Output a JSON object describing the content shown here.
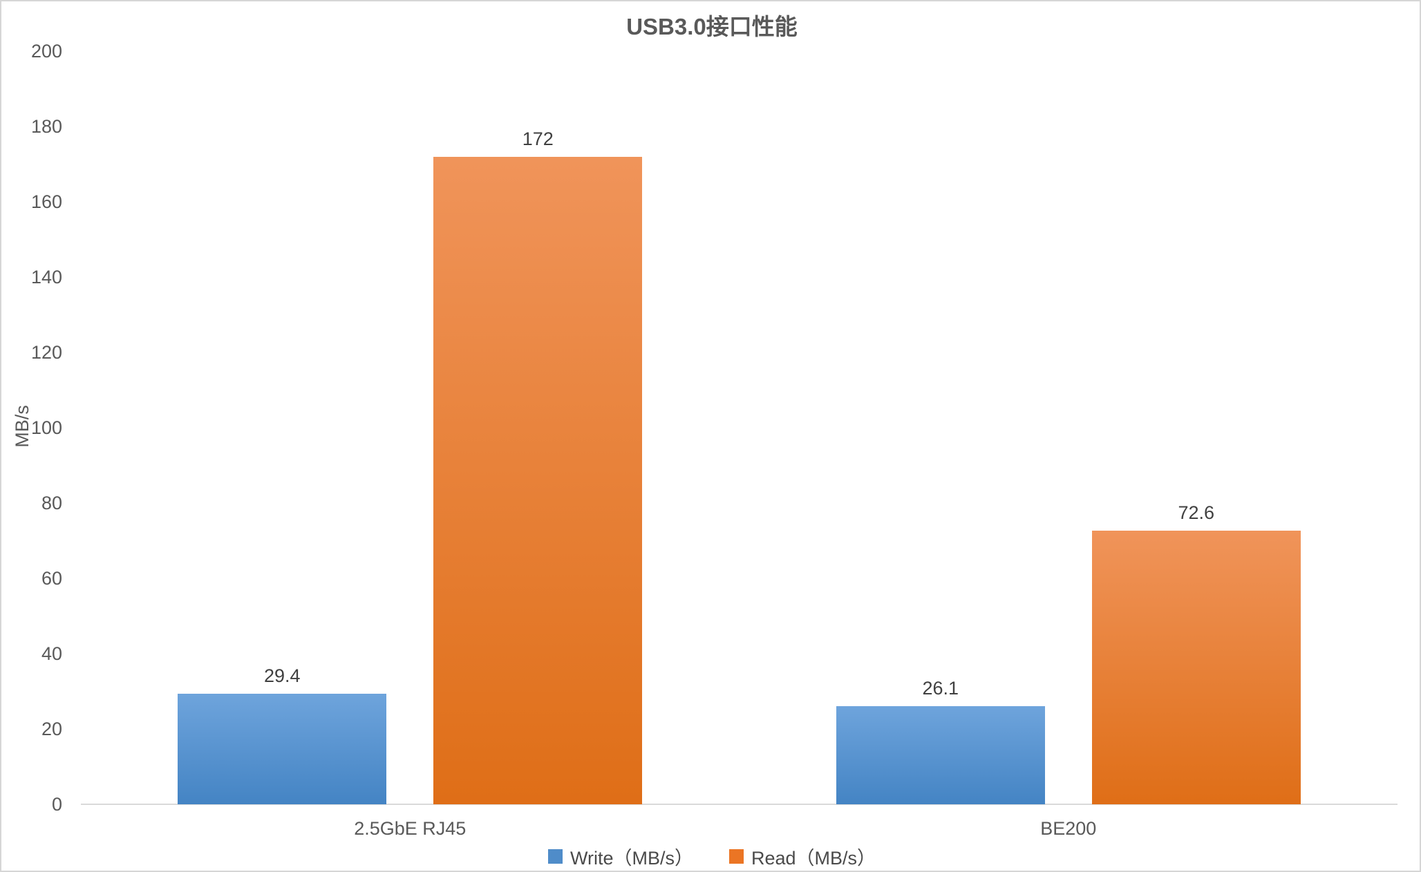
{
  "chart_data": {
    "type": "bar",
    "title": "USB3.0接口性能",
    "xlabel": "",
    "ylabel": "MB/s",
    "categories": [
      "2.5GbE RJ45",
      "BE200"
    ],
    "series": [
      {
        "name": "Write（MB/s）",
        "values": [
          29.4,
          26.1
        ],
        "color_top": "#6ea4dc",
        "color_bottom": "#4484c4",
        "legend_color": "#4f8cc9"
      },
      {
        "name": "Read（MB/s）",
        "values": [
          172,
          72.6
        ],
        "color_top": "#f0945a",
        "color_bottom": "#df6e17",
        "legend_color": "#eb7524"
      }
    ],
    "ylim": [
      0,
      200
    ],
    "ytick_step": 20,
    "grid": false,
    "legend_position": "bottom",
    "data_labels": true
  },
  "colors": {
    "title_text": "#595959",
    "axis_text": "#595959",
    "data_label_text": "#404040",
    "axis_line": "#d9d9d9",
    "background": "#ffffff",
    "frame_border": "#d6d6d6"
  }
}
